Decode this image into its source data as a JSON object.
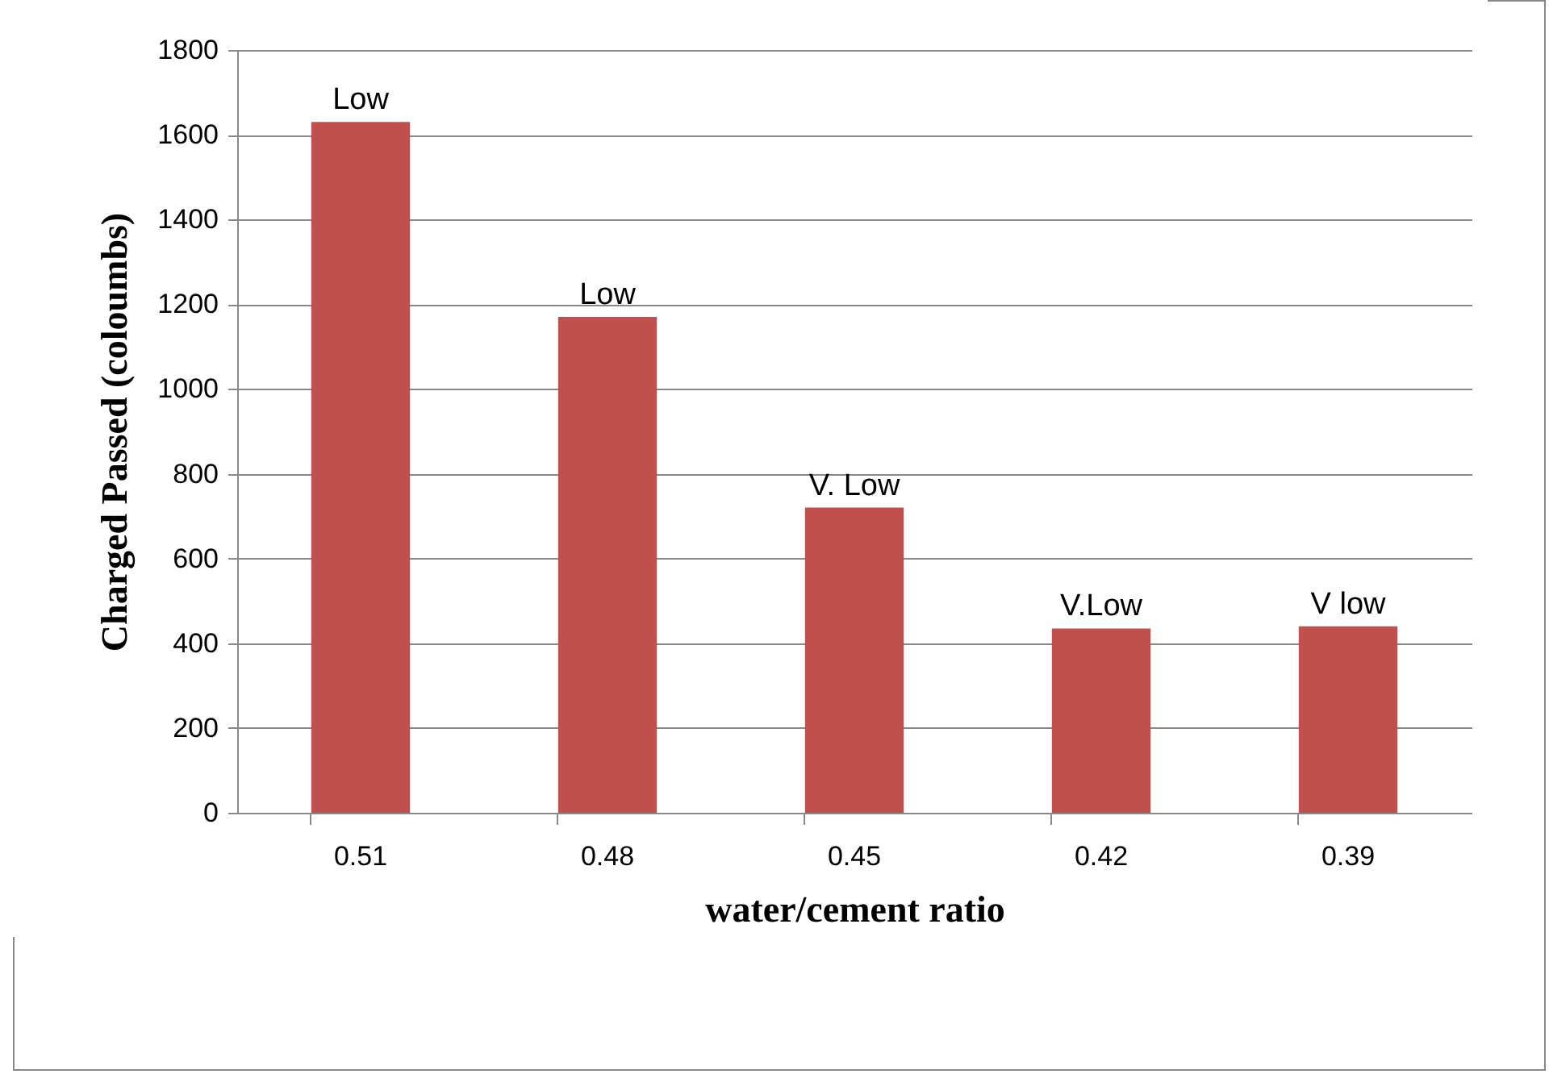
{
  "chart_data": {
    "type": "bar",
    "xlabel": "water/cement ratio",
    "ylabel": "Charged Passed (coloumbs)",
    "categories": [
      "0.51",
      "0.48",
      "0.45",
      "0.42",
      "0.39"
    ],
    "values": [
      1630,
      1170,
      720,
      435,
      440
    ],
    "value_labels": [
      "Low",
      "Low",
      "V. Low",
      "V.Low",
      "V low"
    ],
    "color": "#c0504d",
    "ylim": [
      0,
      1800
    ],
    "yticks": [
      0,
      200,
      400,
      600,
      800,
      1000,
      1200,
      1400,
      1600,
      1800
    ],
    "grid": "y"
  }
}
